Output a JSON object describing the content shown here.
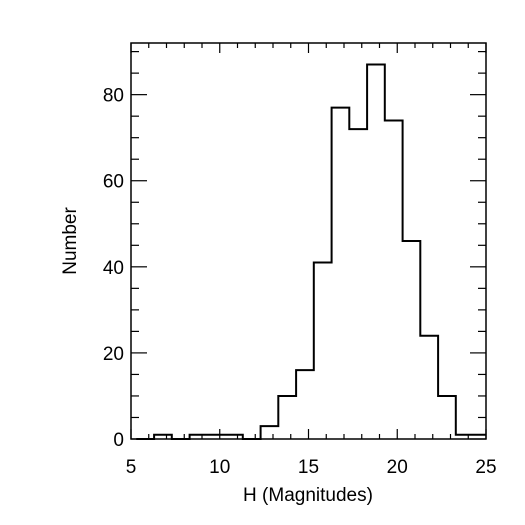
{
  "chart_data": {
    "type": "bar",
    "style": "step-histogram",
    "title": "",
    "xlabel": "H (Magnitudes)",
    "ylabel": "Number",
    "xlim": [
      5,
      25
    ],
    "ylim": [
      0,
      92
    ],
    "xticks": [
      5,
      10,
      15,
      20,
      25
    ],
    "yticks": [
      0,
      20,
      40,
      60,
      80
    ],
    "x_minor_step": 1,
    "y_minor_step": 5,
    "bin_width": 1,
    "bin_edges": [
      5.3,
      6.3,
      7.3,
      8.3,
      9.3,
      10.3,
      11.3,
      12.3,
      13.3,
      14.3,
      15.3,
      16.3,
      17.3,
      18.3,
      19.3,
      20.3,
      21.3,
      22.3,
      23.3,
      24.3,
      25.0
    ],
    "counts": [
      0,
      1,
      0,
      1,
      1,
      1,
      0,
      3,
      10,
      16,
      41,
      77,
      72,
      87,
      74,
      46,
      24,
      10,
      1,
      1
    ],
    "grid": false,
    "line_color": "#000000"
  }
}
